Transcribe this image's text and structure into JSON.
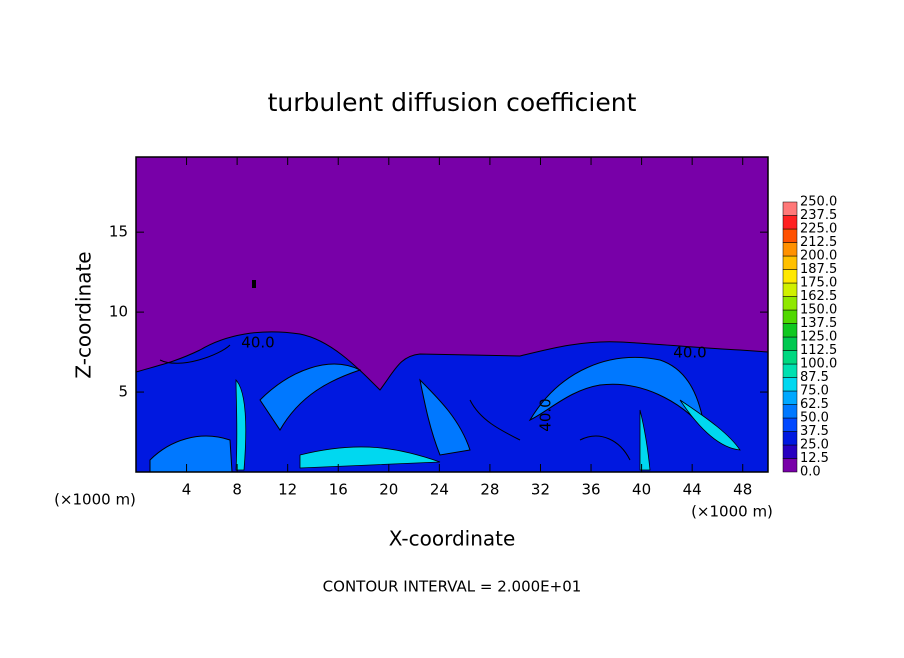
{
  "chart_data": {
    "type": "contour",
    "title": "turbulent diffusion coefficient",
    "x_label": "X-coordinate",
    "y_label": "Z-coordinate",
    "x_unit": "(×1000 m)",
    "y_unit": "(×1000 m)",
    "xlim": [
      0,
      50
    ],
    "xticks": [
      4,
      8,
      12,
      16,
      20,
      24,
      28,
      32,
      36,
      40,
      44,
      48
    ],
    "ylim": [
      0,
      19.7
    ],
    "yticks": [
      5,
      10,
      15
    ],
    "contour_labels": [
      "40.0",
      "40.0",
      "40.0"
    ],
    "footer": "CONTOUR INTERVAL = 2.000E+01",
    "colorbar": {
      "levels": [
        {
          "value": 0,
          "label": "0.0"
        },
        {
          "value": 12.5,
          "label": "12.5"
        },
        {
          "value": 25,
          "label": "25.0"
        },
        {
          "value": 37.5,
          "label": "37.5"
        },
        {
          "value": 50,
          "label": "50.0"
        },
        {
          "value": 62.5,
          "label": "62.5"
        },
        {
          "value": 75,
          "label": "75.0"
        },
        {
          "value": 87.5,
          "label": "87.5"
        },
        {
          "value": 100,
          "label": "100.0"
        },
        {
          "value": 112.5,
          "label": "112.5"
        },
        {
          "value": 125,
          "label": "125.0"
        },
        {
          "value": 137.5,
          "label": "137.5"
        },
        {
          "value": 150,
          "label": "150.0"
        },
        {
          "value": 162.5,
          "label": "162.5"
        },
        {
          "value": 175,
          "label": "175.0"
        },
        {
          "value": 187.5,
          "label": "187.5"
        },
        {
          "value": 200,
          "label": "200.0"
        },
        {
          "value": 212.5,
          "label": "212.5"
        },
        {
          "value": 225,
          "label": "225.0"
        },
        {
          "value": 237.5,
          "label": "237.5"
        },
        {
          "value": 250,
          "label": "250.0"
        }
      ],
      "colors": [
        "#7800a8",
        "#2800c0",
        "#0018e0",
        "#0048ff",
        "#0078ff",
        "#00a8ff",
        "#00d8f0",
        "#00e0b0",
        "#00d880",
        "#00c850",
        "#10c820",
        "#50d800",
        "#90e800",
        "#d0f000",
        "#ffe800",
        "#ffc000",
        "#ff9000",
        "#ff5000",
        "#ff2020",
        "#ff7878"
      ]
    }
  }
}
